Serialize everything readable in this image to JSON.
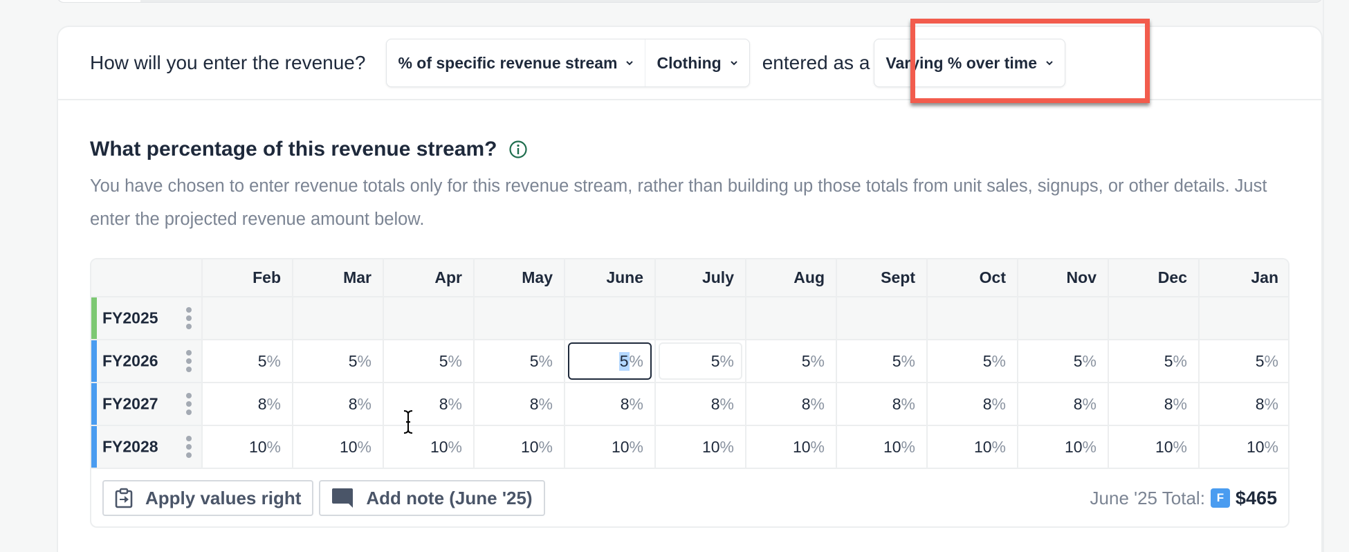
{
  "entry": {
    "question": "How will you enter the revenue?",
    "method_select": "% of specific revenue stream",
    "stream_select": "Clothing",
    "entered_as_label": "entered as a",
    "mode_select": "Varying % over time"
  },
  "section": {
    "title": "What percentage of this revenue stream?",
    "info_icon": "info-circle-icon",
    "description": "You have chosen to enter revenue totals only for this revenue stream, rather than building up those totals from unit sales, signups, or other details. Just enter the projected revenue amount below."
  },
  "grid": {
    "months": [
      "Feb",
      "Mar",
      "Apr",
      "May",
      "June",
      "July",
      "Aug",
      "Sept",
      "Oct",
      "Nov",
      "Dec",
      "Jan"
    ],
    "rows": [
      {
        "label": "FY2025",
        "bar_color": "#7dc873",
        "values": [
          "",
          "",
          "",
          "",
          "",
          "",
          "",
          "",
          "",
          "",
          "",
          ""
        ]
      },
      {
        "label": "FY2026",
        "bar_color": "#4a9cf0",
        "values": [
          "5",
          "5",
          "5",
          "5",
          "5",
          "5",
          "5",
          "5",
          "5",
          "5",
          "5",
          "5"
        ]
      },
      {
        "label": "FY2027",
        "bar_color": "#4a9cf0",
        "values": [
          "8",
          "8",
          "8",
          "8",
          "8",
          "8",
          "8",
          "8",
          "8",
          "8",
          "8",
          "8"
        ]
      },
      {
        "label": "FY2028",
        "bar_color": "#4a9cf0",
        "values": [
          "10",
          "10",
          "10",
          "10",
          "10",
          "10",
          "10",
          "10",
          "10",
          "10",
          "10",
          "10"
        ]
      }
    ],
    "unit": "%",
    "active_cell": {
      "row": "FY2026",
      "month": "June",
      "value": "5"
    }
  },
  "footer": {
    "apply_button": "Apply values right",
    "note_button": "Add note (June '25)",
    "total_label": "June '25 Total:",
    "total_badge": "F",
    "total_value": "$465"
  },
  "colors": {
    "highlight": "#f25c4d",
    "accent_blue": "#4a9cf0",
    "accent_green": "#7dc873",
    "info_green": "#1f6e4e"
  }
}
